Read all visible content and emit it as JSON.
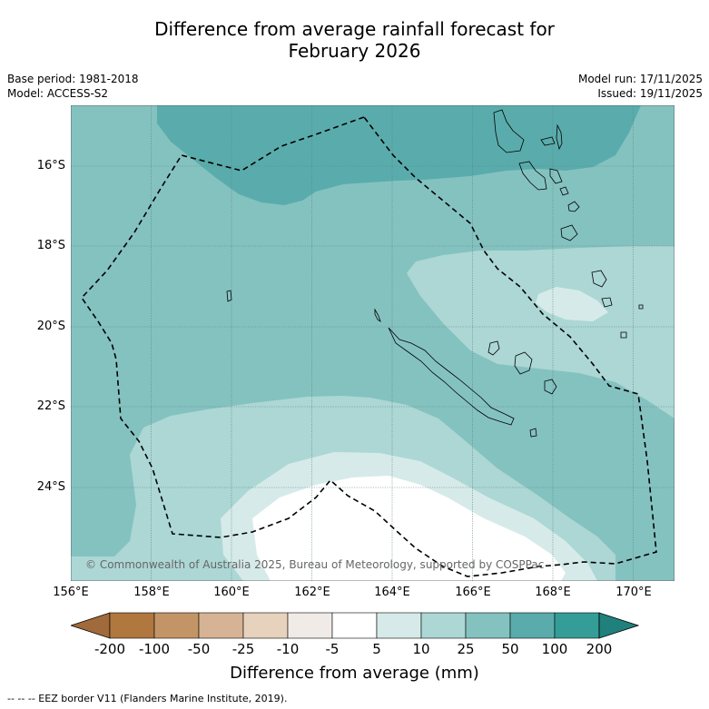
{
  "title": {
    "line1": "Difference from average rainfall forecast for",
    "line2": "February 2026"
  },
  "meta": {
    "base_period": "Base period: 1981-2018",
    "model": "Model: ACCESS-S2",
    "model_run": "Model run: 17/11/2025",
    "issued": "Issued: 19/11/2025"
  },
  "map": {
    "lat_labels": [
      "16°S",
      "18°S",
      "20°S",
      "22°S",
      "24°S"
    ],
    "lon_labels": [
      "156°E",
      "158°E",
      "160°E",
      "162°E",
      "164°E",
      "166°E",
      "168°E",
      "170°E"
    ],
    "copyright": "© Commonwealth of Australia 2025, Bureau of Meteorology, supported by COSPPac"
  },
  "colorbar": {
    "labels": [
      "-200",
      "-100",
      "-50",
      "-25",
      "-10",
      "-5",
      "5",
      "10",
      "25",
      "50",
      "100",
      "200"
    ],
    "colors": [
      "#a06a3a",
      "#b0773f",
      "#c39566",
      "#d6b394",
      "#e7d2bd",
      "#f0ebe7",
      "#ffffff",
      "#d6ebe9",
      "#acd7d5",
      "#84c2c0",
      "#5aacac",
      "#349d98",
      "#20807c"
    ],
    "title": "Difference from average (mm)"
  },
  "footer": "--  --  -- EEZ border V11 (Flanders Marine Institute, 2019).",
  "colors": {
    "band_10_25": "#acd7d5",
    "band_25_50": "#84c2c0",
    "band_50_100": "#5aacac",
    "band_5_10": "#d6ebe9"
  }
}
